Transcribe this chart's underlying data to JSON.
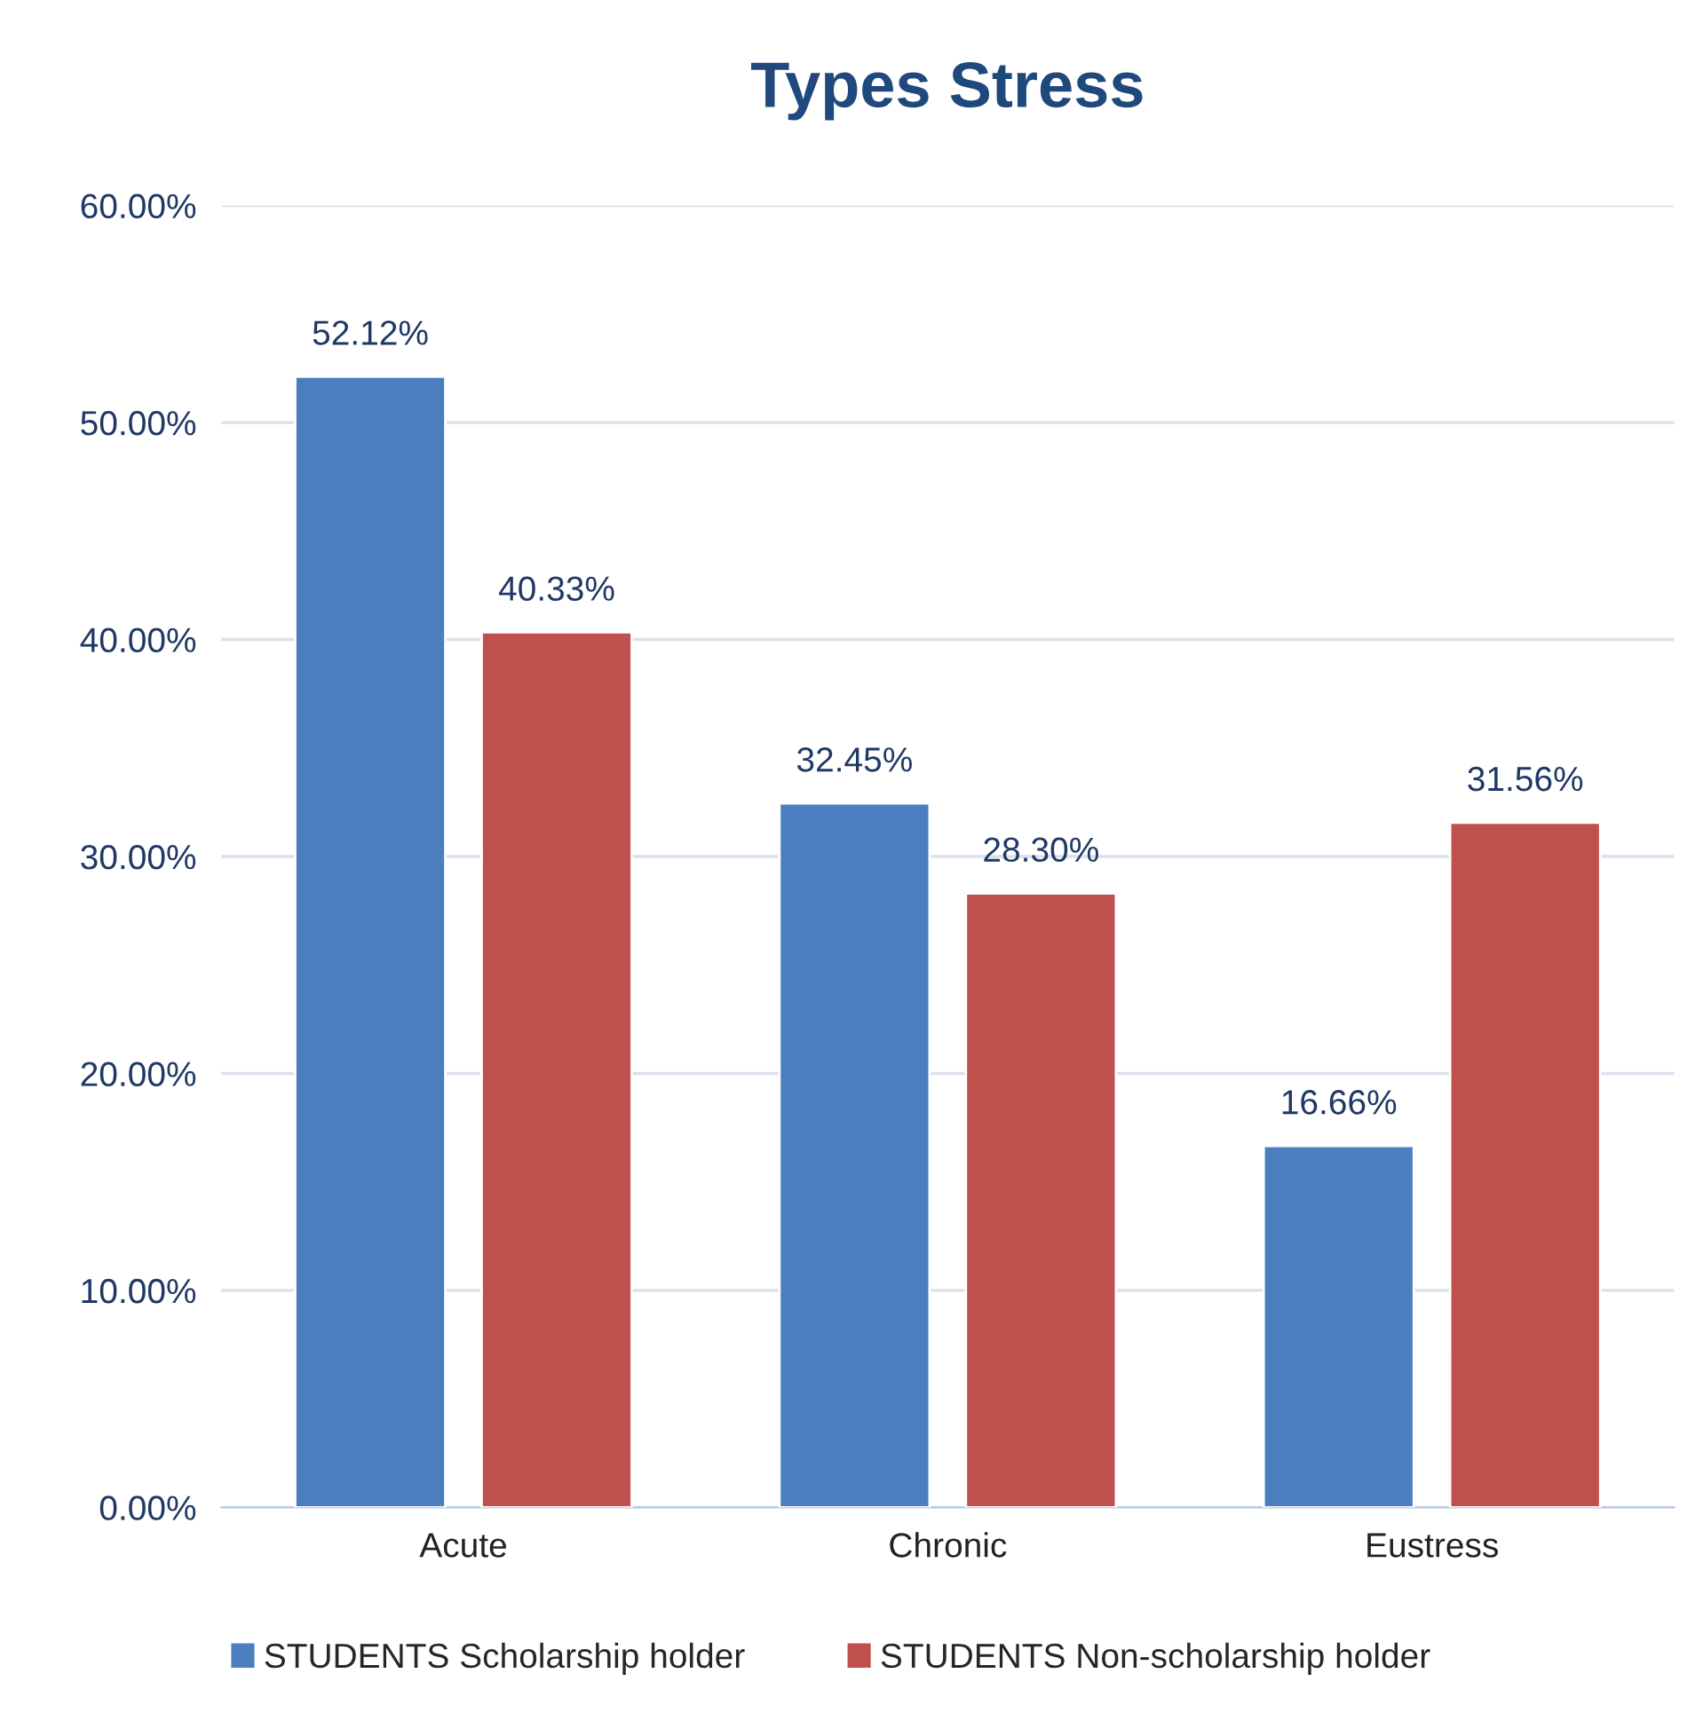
{
  "chart_data": {
    "type": "bar",
    "title": "Types Stress",
    "categories": [
      "Acute",
      "Chronic",
      "Eustress"
    ],
    "series": [
      {
        "name": "STUDENTS Scholarship holder",
        "color": "#4a7ebf",
        "values": [
          52.12,
          32.45,
          16.66
        ],
        "value_labels": [
          "52.12%",
          "32.45%",
          "16.66%"
        ]
      },
      {
        "name": "STUDENTS Non-scholarship holder",
        "color": "#c0504d",
        "values": [
          40.33,
          28.3,
          31.56
        ],
        "value_labels": [
          "40.33%",
          "28.30%",
          "31.56%"
        ]
      }
    ],
    "ylim": [
      0,
      60
    ],
    "yticks": [
      {
        "value": 0,
        "label": "0.00%"
      },
      {
        "value": 10,
        "label": "10.00%"
      },
      {
        "value": 20,
        "label": "20.00%"
      },
      {
        "value": 30,
        "label": "30.00%"
      },
      {
        "value": 40,
        "label": "40.00%"
      },
      {
        "value": 50,
        "label": "50.00%"
      },
      {
        "value": 60,
        "label": "60.00%"
      }
    ],
    "grid": "y",
    "legend": "bottom"
  }
}
